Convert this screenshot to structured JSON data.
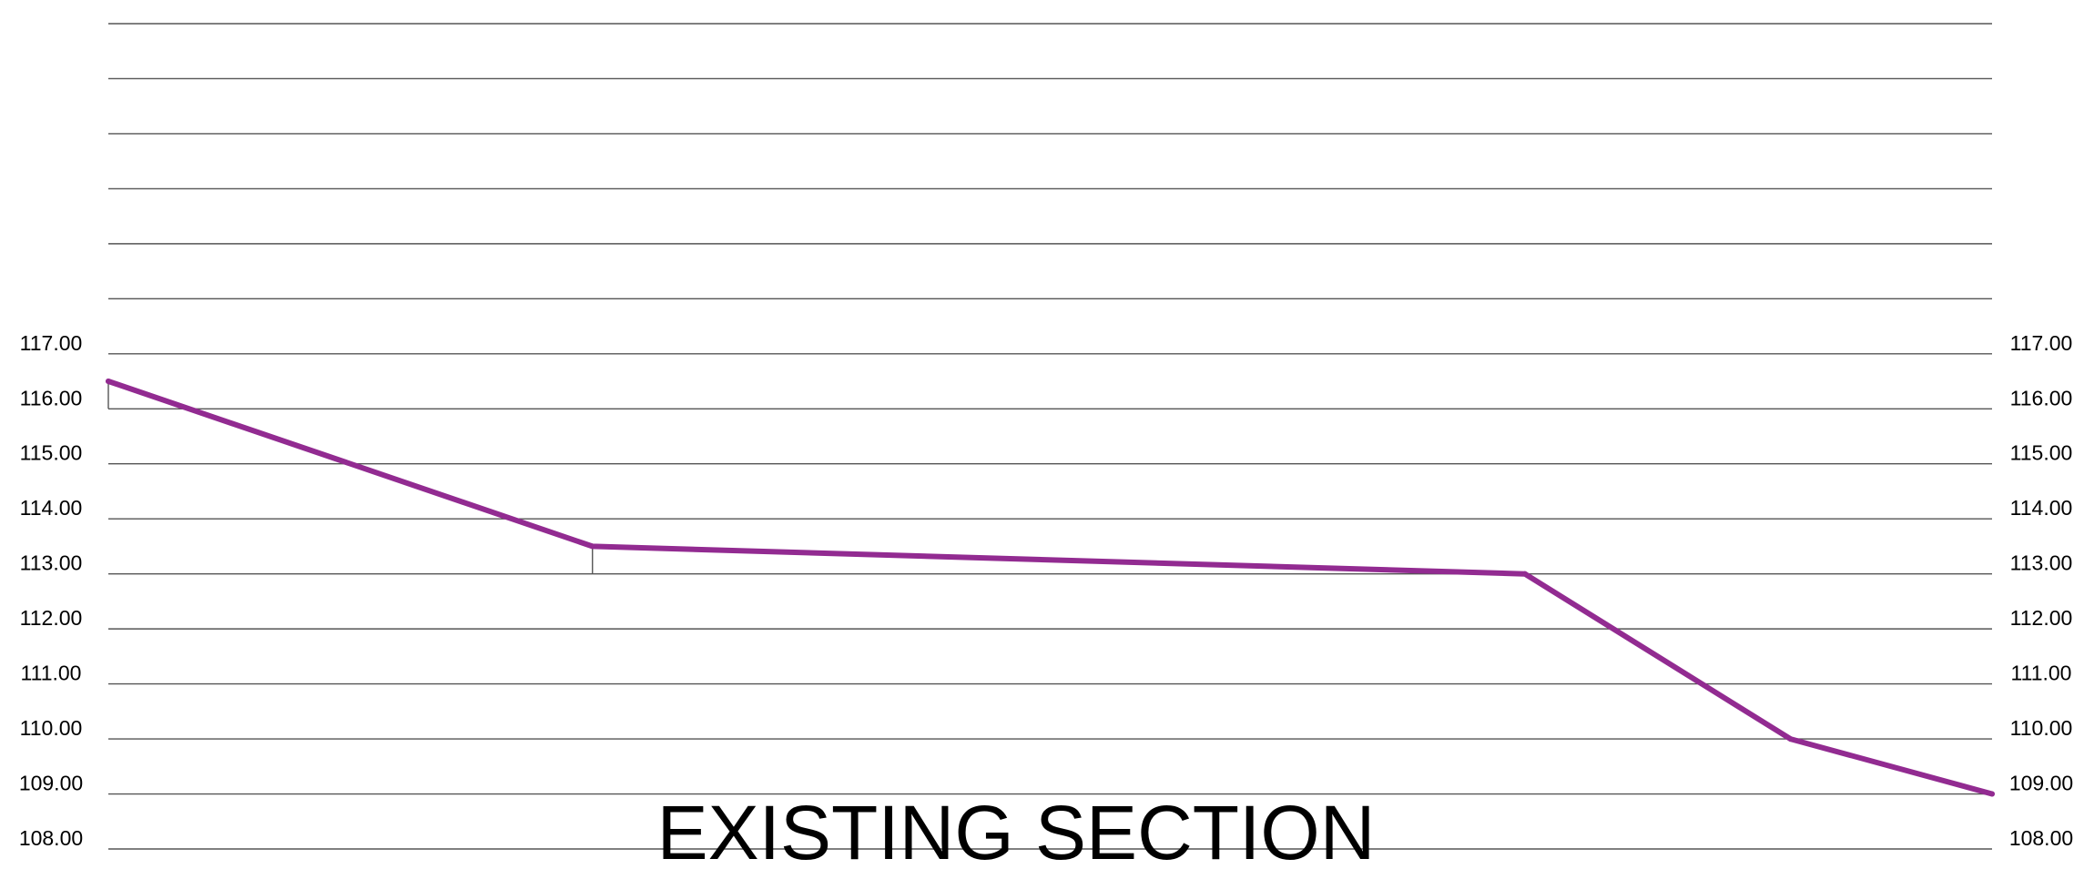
{
  "chart_data": {
    "type": "line",
    "title": "EXISTING SECTION",
    "y_tick_labels": [
      "108.00",
      "109.00",
      "110.00",
      "111.00",
      "112.00",
      "113.00",
      "114.00",
      "115.00",
      "116.00",
      "117.00"
    ],
    "y_ticks": [
      108,
      109,
      110,
      111,
      112,
      113,
      114,
      115,
      116,
      117
    ],
    "ylim": [
      108,
      123
    ],
    "xlim": [
      0,
      100
    ],
    "grid": true,
    "series": [
      {
        "x": [
          0,
          25.7,
          75.2,
          89.3,
          100
        ],
        "y": [
          116.5,
          113.5,
          113.0,
          110.0,
          109.0
        ]
      }
    ],
    "reference_ticks": [
      {
        "x": 0,
        "from": 116.0,
        "to": 116.5
      },
      {
        "x": 25.7,
        "from": 113.0,
        "to": 113.5
      }
    ],
    "colors": {
      "profile": "#922b91",
      "grid": "#555555",
      "text": "#000000"
    }
  }
}
